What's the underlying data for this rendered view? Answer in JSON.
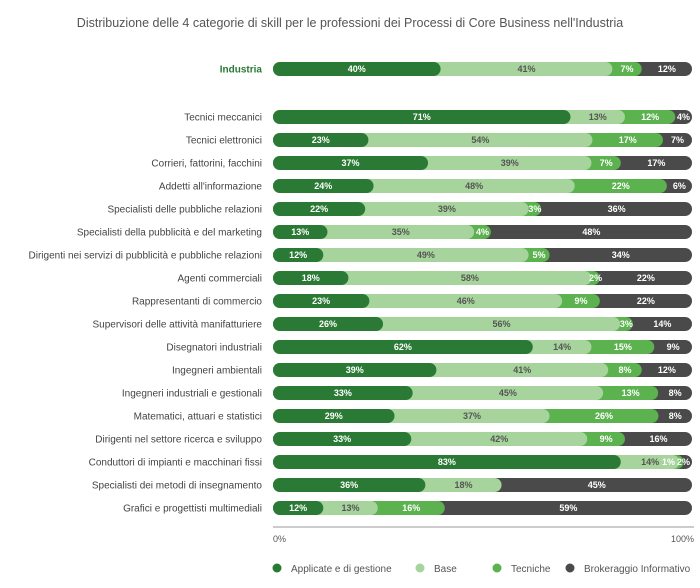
{
  "chart_data": {
    "type": "bar",
    "orientation": "horizontal",
    "stacked": true,
    "title": "Distribuzione delle 4 categorie di skill per le professioni dei Processi di Core Business nell'Industria",
    "categories": [
      "Industria",
      "Tecnici meccanici",
      "Tecnici elettronici",
      "Corrieri, fattorini, facchini",
      "Addetti all'informazione",
      "Specialisti delle pubbliche relazioni",
      "Specialisti della pubblicità e del marketing",
      "Dirigenti nei servizi di pubblicità e pubbliche relazioni",
      "Agenti commerciali",
      "Rappresentanti di commercio",
      "Supervisori delle attività manifatturiere",
      "Disegnatori industriali",
      "Ingegneri ambientali",
      "Ingegneri industriali e gestionali",
      "Matematici, attuari e statistici",
      "Dirigenti nel settore ricerca e sviluppo",
      "Conduttori di impianti e macchinari fissi",
      "Specialisti dei metodi di insegnamento",
      "Grafici e progettisti multimediali"
    ],
    "series": [
      {
        "name": "Applicate e di gestione",
        "color": "#2a7a35",
        "values": [
          40,
          71,
          23,
          37,
          24,
          22,
          13,
          12,
          18,
          23,
          26,
          62,
          39,
          33,
          29,
          33,
          83,
          36,
          12
        ]
      },
      {
        "name": "Base",
        "color": "#a6d49c",
        "values": [
          41,
          13,
          54,
          39,
          48,
          39,
          35,
          49,
          58,
          46,
          56,
          14,
          41,
          45,
          37,
          42,
          14,
          18,
          13
        ]
      },
      {
        "name": "Tecniche",
        "color": "#5bb24f",
        "values": [
          7,
          12,
          17,
          7,
          22,
          3,
          4,
          5,
          2,
          9,
          3,
          15,
          8,
          13,
          26,
          9,
          1,
          0,
          16
        ]
      },
      {
        "name": "Brokeraggio Informativo",
        "color": "#4a4a4a",
        "values": [
          12,
          4,
          7,
          17,
          6,
          36,
          48,
          34,
          22,
          22,
          14,
          9,
          12,
          8,
          8,
          16,
          2,
          45,
          59
        ]
      }
    ],
    "xlim": [
      0,
      100
    ],
    "x_tick_labels": [
      "0%",
      "100%"
    ],
    "value_suffix": "%",
    "legend": "bottom",
    "grid": false
  }
}
